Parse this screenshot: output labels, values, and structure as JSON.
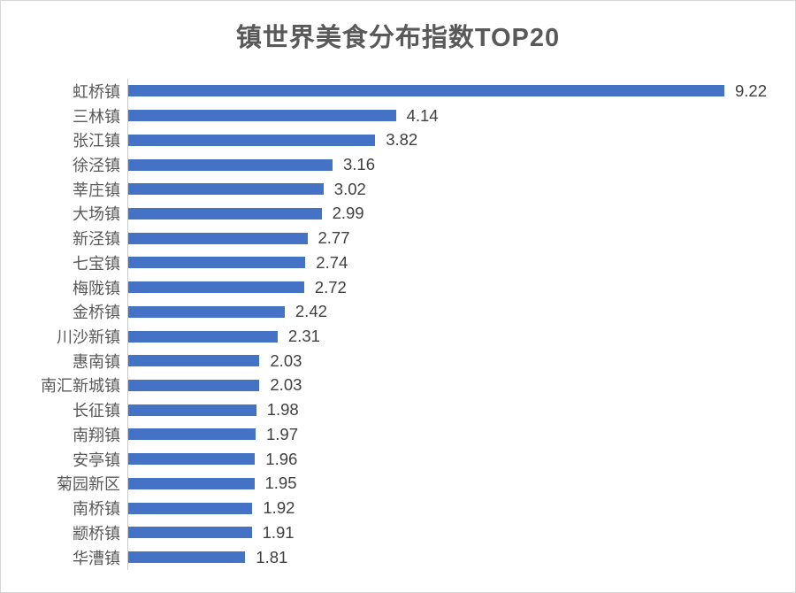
{
  "page": {
    "background": "#ffffff",
    "border_color": "#d6d6d6"
  },
  "chart_data": {
    "type": "bar",
    "orientation": "horizontal",
    "title": "镇世界美食分布指数TOP20",
    "title_color": "#595959",
    "bar_color": "#4472c4",
    "category_label_color": "#595959",
    "value_label_color": "#404040",
    "axis_line_color": "#c9c9c9",
    "grid": false,
    "legend": false,
    "xlabel": "",
    "ylabel": "",
    "xlim": [
      0,
      10.3
    ],
    "categories": [
      "虹桥镇",
      "三林镇",
      "张江镇",
      "徐泾镇",
      "莘庄镇",
      "大场镇",
      "新泾镇",
      "七宝镇",
      "梅陇镇",
      "金桥镇",
      "川沙新镇",
      "惠南镇",
      "南汇新城镇",
      "长征镇",
      "南翔镇",
      "安亭镇",
      "菊园新区",
      "南桥镇",
      "颛桥镇",
      "华漕镇"
    ],
    "values": [
      9.22,
      4.14,
      3.82,
      3.16,
      3.02,
      2.99,
      2.77,
      2.74,
      2.72,
      2.42,
      2.31,
      2.03,
      2.03,
      1.98,
      1.97,
      1.96,
      1.95,
      1.92,
      1.91,
      1.81
    ],
    "value_labels": [
      "9.22",
      "4.14",
      "3.82",
      "3.16",
      "3.02",
      "2.99",
      "2.77",
      "2.74",
      "2.72",
      "2.42",
      "2.31",
      "2.03",
      "2.03",
      "1.98",
      "1.97",
      "1.96",
      "1.95",
      "1.92",
      "1.91",
      "1.81"
    ]
  }
}
